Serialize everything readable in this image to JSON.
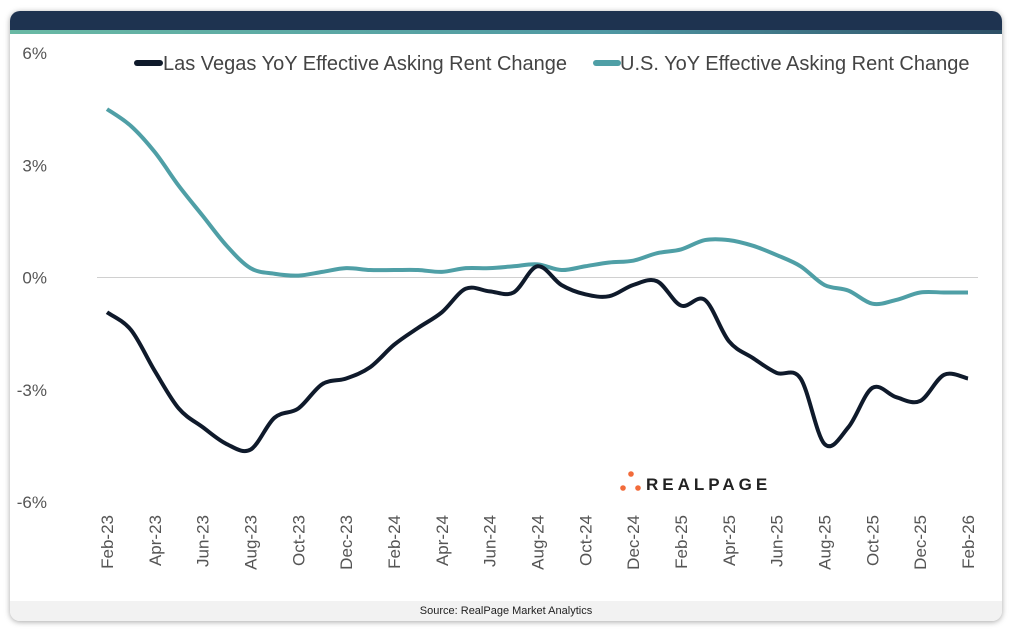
{
  "chart_data": {
    "type": "line",
    "title": "",
    "xlabel": "",
    "ylabel": "",
    "ylim": [
      -6,
      6
    ],
    "yticks": [
      "6%",
      "3%",
      "0%",
      "-3%",
      "-6%"
    ],
    "ytick_values": [
      6,
      3,
      0,
      -3,
      -6
    ],
    "grid": "zero line only",
    "legend_position": "top",
    "x": [
      "Feb-23",
      "Mar-23",
      "Apr-23",
      "May-23",
      "Jun-23",
      "Jul-23",
      "Aug-23",
      "Sep-23",
      "Oct-23",
      "Nov-23",
      "Dec-23",
      "Jan-24",
      "Feb-24",
      "Mar-24",
      "Apr-24",
      "May-24",
      "Jun-24",
      "Jul-24",
      "Aug-24",
      "Sep-24",
      "Oct-24",
      "Nov-24",
      "Dec-24",
      "Jan-25",
      "Feb-25",
      "Mar-25",
      "Apr-25",
      "May-25",
      "Jun-25",
      "Jul-25",
      "Aug-25",
      "Sep-25",
      "Oct-25",
      "Nov-25",
      "Dec-25",
      "Jan-26",
      "Feb-26"
    ],
    "xtick_labels": [
      "Feb-23",
      "Apr-23",
      "Jun-23",
      "Aug-23",
      "Oct-23",
      "Dec-23",
      "Feb-24",
      "Apr-24",
      "Jun-24",
      "Aug-24",
      "Oct-24",
      "Dec-24",
      "Feb-25",
      "Apr-25",
      "Jun-25",
      "Aug-25",
      "Oct-25",
      "Dec-25",
      "Feb-26"
    ],
    "series": [
      {
        "name": "Las Vegas YoY Effective Asking Rent Change",
        "color": "#0f1a2b",
        "values": [
          -0.93,
          -1.4,
          -2.5,
          -3.5,
          -4.0,
          -4.45,
          -4.6,
          -3.75,
          -3.5,
          -2.85,
          -2.7,
          -2.4,
          -1.8,
          -1.35,
          -0.93,
          -0.3,
          -0.37,
          -0.4,
          0.3,
          -0.2,
          -0.45,
          -0.5,
          -0.2,
          -0.1,
          -0.75,
          -0.6,
          -1.7,
          -2.15,
          -2.55,
          -2.7,
          -4.45,
          -4.0,
          -2.95,
          -3.2,
          -3.3,
          -2.6,
          -2.7
        ]
      },
      {
        "name": "U.S. YoY Effective Asking Rent Change",
        "color": "#4f9fa6",
        "values": [
          4.5,
          4.05,
          3.35,
          2.45,
          1.65,
          0.85,
          0.25,
          0.1,
          0.05,
          0.15,
          0.25,
          0.2,
          0.2,
          0.2,
          0.15,
          0.25,
          0.25,
          0.3,
          0.35,
          0.2,
          0.3,
          0.4,
          0.45,
          0.65,
          0.75,
          1.0,
          1.0,
          0.85,
          0.6,
          0.3,
          -0.2,
          -0.35,
          -0.7,
          -0.6,
          -0.4,
          -0.4,
          -0.4
        ]
      }
    ]
  },
  "logo": {
    "text": "REALPAGE",
    "dot_color": "#f26b3a"
  },
  "footer": {
    "source": "Source: RealPage Market Analytics"
  }
}
